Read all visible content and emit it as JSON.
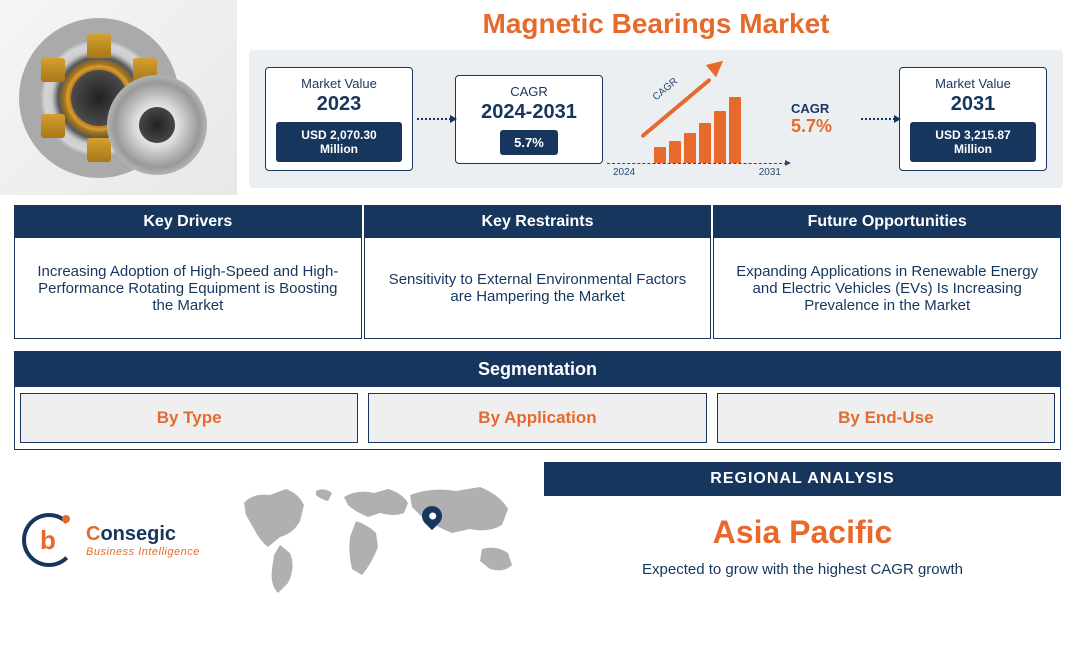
{
  "title": "Magnetic Bearings Market",
  "colors": {
    "accent": "#e56a2c",
    "primary": "#17365d",
    "band_bg": "#eceff1",
    "seg_cell_bg": "#efefef",
    "map_fill": "#b0b0b0"
  },
  "metrics": {
    "start": {
      "label": "Market Value",
      "year": "2023",
      "value": "USD 2,070.30 Million"
    },
    "cagr_card": {
      "label": "CAGR",
      "period": "2024-2031",
      "value": "5.7%"
    },
    "end": {
      "label": "Market Value",
      "year": "2031",
      "value": "USD 3,215.87 Million"
    },
    "graphic": {
      "cagr_label": "CAGR",
      "cagr_value": "5.7%",
      "curve_label": "CAGR",
      "axis_start": "2024",
      "axis_end": "2031",
      "bar_heights": [
        16,
        22,
        30,
        40,
        52,
        66
      ]
    }
  },
  "factors": [
    {
      "header": "Key Drivers",
      "body": "Increasing Adoption of High-Speed and High-Performance Rotating Equipment is Boosting the Market"
    },
    {
      "header": "Key Restraints",
      "body": "Sensitivity to External Environmental Factors are Hampering the Market"
    },
    {
      "header": "Future Opportunities",
      "body": "Expanding Applications in Renewable Energy and Electric Vehicles (EVs) Is Increasing Prevalence in the Market"
    }
  ],
  "segmentation": {
    "header": "Segmentation",
    "items": [
      "By Type",
      "By Application",
      "By End-Use"
    ]
  },
  "logo": {
    "word1_a": "C",
    "word1_b": "onsegic",
    "word2": "Business Intelligence"
  },
  "region": {
    "header": "REGIONAL ANALYSIS",
    "name": "Asia Pacific",
    "caption": "Expected to grow with the highest CAGR growth"
  }
}
